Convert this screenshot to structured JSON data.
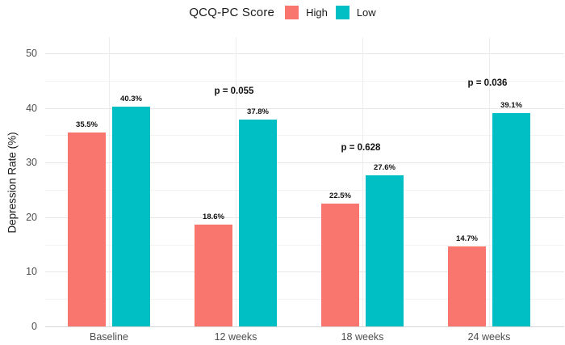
{
  "legend": {
    "title": "QCQ-PC Score",
    "items": [
      {
        "label": "High",
        "color": "#F8766D"
      },
      {
        "label": "Low",
        "color": "#00BFC4"
      }
    ]
  },
  "chart_data": {
    "type": "bar",
    "title": "",
    "categories": [
      "Baseline",
      "12 weeks",
      "18 weeks",
      "24 weeks"
    ],
    "series": [
      {
        "name": "High",
        "color": "#F8766D",
        "values": [
          35.5,
          18.6,
          22.5,
          14.7
        ],
        "labels": [
          "35.5%",
          "18.6%",
          "22.5%",
          "14.7%"
        ]
      },
      {
        "name": "Low",
        "color": "#00BFC4",
        "values": [
          40.3,
          37.8,
          27.6,
          39.1
        ],
        "labels": [
          "40.3%",
          "37.8%",
          "27.6%",
          "39.1%"
        ]
      }
    ],
    "annotations": [
      {
        "category": "12 weeks",
        "category_index": 1,
        "text": "p = 0.055",
        "y_value": 42.9
      },
      {
        "category": "18 weeks",
        "category_index": 2,
        "text": "p = 0.628",
        "y_value": 32.5
      },
      {
        "category": "24 weeks",
        "category_index": 3,
        "text": "p = 0.036",
        "y_value": 44.4
      }
    ],
    "xlabel": "",
    "ylabel": "Depression Rate (%)",
    "ylim": [
      0,
      50
    ],
    "yticks": [
      0,
      10,
      20,
      30,
      40,
      50
    ],
    "minor_yticks": [
      5,
      15,
      25,
      35,
      45
    ],
    "grid": true,
    "legend_position": "top",
    "colors": {
      "background": "#ffffff",
      "grid_major": "#e7e7e7",
      "grid_minor": "#f3f3f3",
      "grid_vertical": "#ededed",
      "axis_line": "#d6d6d6",
      "tick_text": "#4d4d4d",
      "label_text": "#111111"
    }
  }
}
